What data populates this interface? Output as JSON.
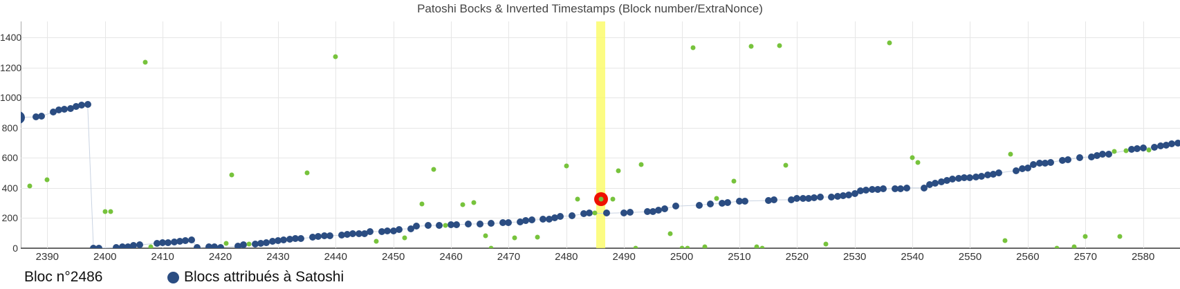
{
  "chart_data": {
    "type": "scatter",
    "title": "Patoshi Bocks & Inverted Timestamps (Block number/ExtraNonce)",
    "x_axis": {
      "range": [
        2385.4,
        2586.4
      ],
      "ticks": [
        2390,
        2400,
        2410,
        2420,
        2430,
        2440,
        2450,
        2460,
        2470,
        2480,
        2490,
        2500,
        2510,
        2520,
        2530,
        2540,
        2550,
        2560,
        2570,
        2580
      ],
      "grid": true
    },
    "y_axis": {
      "range": [
        0,
        1506
      ],
      "ticks": [
        0,
        200,
        400,
        600,
        800,
        1000,
        1200,
        1400
      ],
      "grid": true
    },
    "legend_position": "bottom-left",
    "highlight": {
      "block": 2486,
      "value": 325,
      "ring_color": "#ee1100",
      "band_color": "#fbfb64"
    },
    "series": [
      {
        "name": "Blocs attribués à Satoshi",
        "color": "#2b4d82",
        "marker_size": 10,
        "points": [
          [
            2385,
            868,
            18
          ],
          [
            2388,
            871
          ],
          [
            2389,
            876
          ],
          [
            2391,
            902
          ],
          [
            2392,
            916
          ],
          [
            2393,
            923
          ],
          [
            2394,
            928
          ],
          [
            2395,
            940
          ],
          [
            2396,
            949
          ],
          [
            2397,
            954
          ],
          [
            2398,
            0
          ],
          [
            2399,
            0
          ],
          [
            2402,
            2
          ],
          [
            2403,
            5
          ],
          [
            2404,
            8
          ],
          [
            2405,
            16
          ],
          [
            2406,
            19
          ],
          [
            2409,
            31
          ],
          [
            2410,
            34
          ],
          [
            2411,
            34
          ],
          [
            2412,
            39
          ],
          [
            2413,
            44
          ],
          [
            2414,
            47
          ],
          [
            2415,
            54
          ],
          [
            2416,
            2
          ],
          [
            2418,
            5
          ],
          [
            2419,
            5
          ],
          [
            2420,
            3
          ],
          [
            2423,
            10
          ],
          [
            2424,
            20
          ],
          [
            2426,
            27
          ],
          [
            2427,
            31
          ],
          [
            2428,
            36
          ],
          [
            2429,
            42
          ],
          [
            2430,
            47
          ],
          [
            2431,
            54
          ],
          [
            2432,
            57
          ],
          [
            2433,
            62
          ],
          [
            2434,
            62
          ],
          [
            2436,
            70
          ],
          [
            2437,
            74
          ],
          [
            2438,
            80
          ],
          [
            2439,
            82
          ],
          [
            2441,
            84
          ],
          [
            2442,
            88
          ],
          [
            2443,
            93
          ],
          [
            2444,
            95
          ],
          [
            2445,
            96
          ],
          [
            2446,
            108
          ],
          [
            2448,
            108
          ],
          [
            2449,
            113
          ],
          [
            2450,
            113
          ],
          [
            2451,
            124
          ],
          [
            2453,
            128
          ],
          [
            2454,
            143
          ],
          [
            2456,
            148
          ],
          [
            2458,
            150
          ],
          [
            2460,
            152
          ],
          [
            2461,
            154
          ],
          [
            2463,
            158
          ],
          [
            2465,
            160
          ],
          [
            2467,
            162
          ],
          [
            2469,
            166
          ],
          [
            2470,
            169
          ],
          [
            2472,
            174
          ],
          [
            2473,
            180
          ],
          [
            2474,
            185
          ],
          [
            2476,
            189
          ],
          [
            2477,
            189
          ],
          [
            2478,
            200
          ],
          [
            2479,
            211
          ],
          [
            2481,
            212
          ],
          [
            2483,
            228
          ],
          [
            2484,
            230
          ],
          [
            2487,
            230
          ],
          [
            2490,
            234
          ],
          [
            2491,
            235
          ],
          [
            2494,
            240
          ],
          [
            2495,
            240
          ],
          [
            2496,
            251
          ],
          [
            2497,
            261
          ],
          [
            2499,
            277
          ],
          [
            2503,
            284
          ],
          [
            2505,
            292
          ],
          [
            2507,
            295
          ],
          [
            2508,
            300
          ],
          [
            2510,
            312
          ],
          [
            2511,
            312
          ],
          [
            2515,
            315
          ],
          [
            2516,
            318
          ],
          [
            2519,
            320
          ],
          [
            2520,
            327
          ],
          [
            2521,
            330
          ],
          [
            2522,
            327
          ],
          [
            2523,
            333
          ],
          [
            2524,
            338
          ],
          [
            2526,
            338
          ],
          [
            2527,
            343
          ],
          [
            2528,
            348
          ],
          [
            2529,
            353
          ],
          [
            2530,
            360
          ],
          [
            2531,
            378
          ],
          [
            2532,
            384
          ],
          [
            2533,
            389
          ],
          [
            2534,
            389
          ],
          [
            2535,
            392
          ],
          [
            2537,
            395
          ],
          [
            2538,
            395
          ],
          [
            2539,
            399
          ],
          [
            2542,
            398
          ],
          [
            2543,
            419
          ],
          [
            2544,
            430
          ],
          [
            2545,
            438
          ],
          [
            2546,
            450
          ],
          [
            2547,
            456
          ],
          [
            2548,
            461
          ],
          [
            2549,
            465
          ],
          [
            2550,
            468
          ],
          [
            2551,
            471
          ],
          [
            2552,
            476
          ],
          [
            2553,
            484
          ],
          [
            2554,
            491
          ],
          [
            2555,
            499
          ],
          [
            2558,
            514
          ],
          [
            2559,
            527
          ],
          [
            2560,
            532
          ],
          [
            2561,
            553
          ],
          [
            2562,
            563
          ],
          [
            2563,
            565
          ],
          [
            2564,
            568
          ],
          [
            2566,
            583
          ],
          [
            2567,
            586
          ],
          [
            2569,
            601
          ],
          [
            2571,
            606
          ],
          [
            2572,
            613
          ],
          [
            2573,
            621
          ],
          [
            2574,
            624
          ],
          [
            2578,
            655
          ],
          [
            2579,
            660
          ],
          [
            2580,
            664
          ],
          [
            2582,
            670
          ],
          [
            2583,
            680
          ],
          [
            2584,
            683
          ],
          [
            2585,
            691
          ],
          [
            2586,
            695
          ]
        ]
      },
      {
        "name": "Inverted Timestamps",
        "color": "#77c33c",
        "marker_size": 7,
        "points": [
          [
            2387,
            412
          ],
          [
            2390,
            455
          ],
          [
            2400,
            240
          ],
          [
            2401,
            240
          ],
          [
            2407,
            1235
          ],
          [
            2408,
            5
          ],
          [
            2421,
            30
          ],
          [
            2422,
            485
          ],
          [
            2425,
            25
          ],
          [
            2435,
            500
          ],
          [
            2440,
            1270
          ],
          [
            2447,
            45
          ],
          [
            2452,
            65
          ],
          [
            2455,
            290
          ],
          [
            2457,
            520
          ],
          [
            2459,
            150
          ],
          [
            2462,
            287
          ],
          [
            2464,
            300
          ],
          [
            2466,
            80
          ],
          [
            2467,
            0
          ],
          [
            2471,
            65
          ],
          [
            2475,
            73
          ],
          [
            2480,
            545
          ],
          [
            2482,
            325
          ],
          [
            2485,
            230
          ],
          [
            2486,
            325
          ],
          [
            2488,
            325
          ],
          [
            2489,
            515
          ],
          [
            2492,
            0
          ],
          [
            2493,
            555
          ],
          [
            2498,
            95
          ],
          [
            2500,
            0
          ],
          [
            2501,
            0
          ],
          [
            2502,
            1330
          ],
          [
            2504,
            5
          ],
          [
            2506,
            330
          ],
          [
            2509,
            445
          ],
          [
            2512,
            1340
          ],
          [
            2513,
            5
          ],
          [
            2514,
            0
          ],
          [
            2517,
            1345
          ],
          [
            2518,
            548
          ],
          [
            2525,
            25
          ],
          [
            2536,
            1365
          ],
          [
            2540,
            600
          ],
          [
            2541,
            568
          ],
          [
            2556,
            50
          ],
          [
            2557,
            625
          ],
          [
            2565,
            0
          ],
          [
            2568,
            5
          ],
          [
            2570,
            75
          ],
          [
            2575,
            640
          ],
          [
            2576,
            75
          ],
          [
            2577,
            645
          ],
          [
            2581,
            650
          ]
        ]
      }
    ]
  },
  "footer": {
    "selected_block_label": "Bloc n°2486",
    "legend": {
      "label": "Blocs attribués à Satoshi",
      "marker_color": "#2b4d82"
    }
  }
}
